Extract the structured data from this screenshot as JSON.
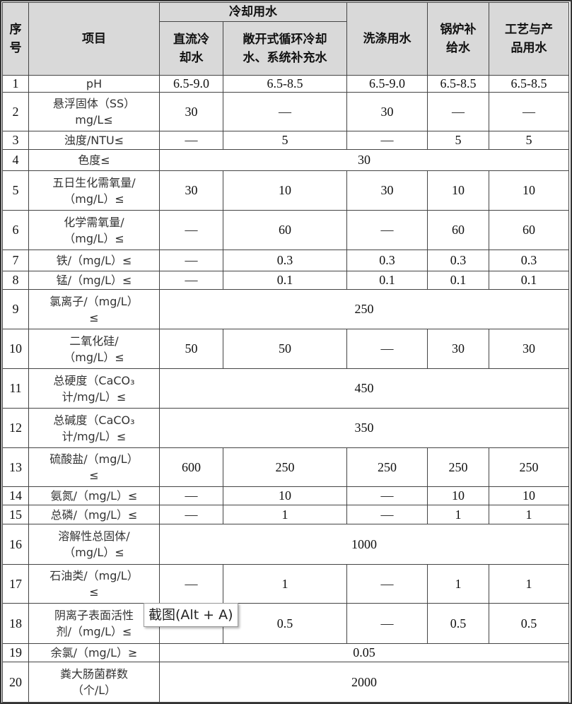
{
  "header": {
    "seq": "序\n号",
    "item": "项目",
    "cooling_group": "冷却用水",
    "columns": [
      "直流冷\n却水",
      "敞开式循环冷却\n水、系统补充水",
      "洗涤用水",
      "锅炉补\n给水",
      "工艺与产\n品用水"
    ]
  },
  "rows": [
    {
      "no": "1",
      "item": "pH",
      "values": [
        "6.5-9.0",
        "6.5-8.5",
        "6.5-9.0",
        "6.5-8.5",
        "6.5-8.5"
      ]
    },
    {
      "no": "2",
      "item": "悬浮固体（SS）\nmg/L≤",
      "values": [
        "30",
        "—",
        "30",
        "—",
        "—"
      ]
    },
    {
      "no": "3",
      "item": "浊度/NTU≤",
      "values": [
        "—",
        "5",
        "—",
        "5",
        "5"
      ]
    },
    {
      "no": "4",
      "item": "色度≤",
      "merged": "30"
    },
    {
      "no": "5",
      "item": "五日生化需氧量/\n（mg/L）≤",
      "values": [
        "30",
        "10",
        "30",
        "10",
        "10"
      ]
    },
    {
      "no": "6",
      "item": "化学需氧量/\n（mg/L）≤",
      "values": [
        "—",
        "60",
        "—",
        "60",
        "60"
      ]
    },
    {
      "no": "7",
      "item": "铁/（mg/L）≤",
      "values": [
        "—",
        "0.3",
        "0.3",
        "0.3",
        "0.3"
      ]
    },
    {
      "no": "8",
      "item": "锰/（mg/L）≤",
      "values": [
        "—",
        "0.1",
        "0.1",
        "0.1",
        "0.1"
      ]
    },
    {
      "no": "9",
      "item": "氯离子/（mg/L）\n≤",
      "merged": "250"
    },
    {
      "no": "10",
      "item": "二氧化硅/\n（mg/L）≤",
      "values": [
        "50",
        "50",
        "—",
        "30",
        "30"
      ]
    },
    {
      "no": "11",
      "item": "总硬度（CaCO₃\n计/mg/L）≤",
      "merged": "450"
    },
    {
      "no": "12",
      "item": "总碱度（CaCO₃\n计/mg/L）≤",
      "merged": "350"
    },
    {
      "no": "13",
      "item": "硫酸盐/（mg/L）\n≤",
      "values": [
        "600",
        "250",
        "250",
        "250",
        "250"
      ]
    },
    {
      "no": "14",
      "item": "氨氮/（mg/L）≤",
      "values": [
        "—",
        "10",
        "—",
        "10",
        "10"
      ]
    },
    {
      "no": "15",
      "item": "总磷/（mg/L）≤",
      "values": [
        "—",
        "1",
        "—",
        "1",
        "1"
      ]
    },
    {
      "no": "16",
      "item": "溶解性总固体/\n（mg/L）≤",
      "merged": "1000"
    },
    {
      "no": "17",
      "item": "石油类/（mg/L）\n≤",
      "values": [
        "—",
        "1",
        "—",
        "1",
        "1"
      ]
    },
    {
      "no": "18",
      "item": "阴离子表面活性\n剂/（mg/L）≤",
      "values": [
        "",
        "0.5",
        "—",
        "0.5",
        "0.5"
      ]
    },
    {
      "no": "19",
      "item": "余氯/（mg/L）≥",
      "merged": "0.05"
    },
    {
      "no": "20",
      "item": "粪大肠菌群数\n（个/L）",
      "merged": "2000"
    }
  ],
  "tooltip": "截图(Alt + A)"
}
